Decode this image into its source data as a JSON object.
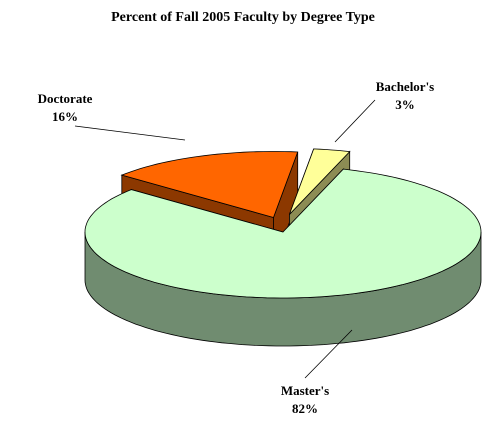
{
  "chart_data": {
    "type": "pie3d",
    "title": "Percent of Fall 2005 Faculty by Degree Type",
    "categories": [
      "Doctorate",
      "Bachelor's",
      "Master's"
    ],
    "values": [
      16,
      3,
      82
    ],
    "value_labels": [
      "16%",
      "3%",
      "82%"
    ],
    "colors": [
      "#ff6600",
      "#ffff99",
      "#ccffcc"
    ]
  }
}
